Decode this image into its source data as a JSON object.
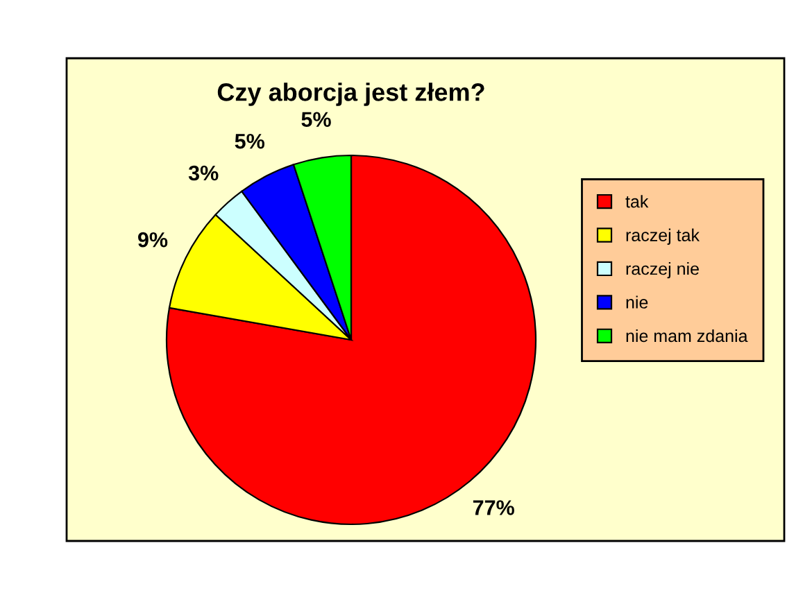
{
  "chart_data": {
    "type": "pie",
    "title": "Czy aborcja jest złem?",
    "categories": [
      "tak",
      "raczej tak",
      "raczej nie",
      "nie",
      "nie mam zdania"
    ],
    "values": [
      77,
      9,
      3,
      5,
      5
    ],
    "colors": [
      "#ff0000",
      "#ffff00",
      "#ccffff",
      "#0000ff",
      "#00ff00"
    ],
    "value_labels": [
      "77%",
      "9%",
      "3%",
      "5%",
      "5%"
    ],
    "legend": "right"
  }
}
